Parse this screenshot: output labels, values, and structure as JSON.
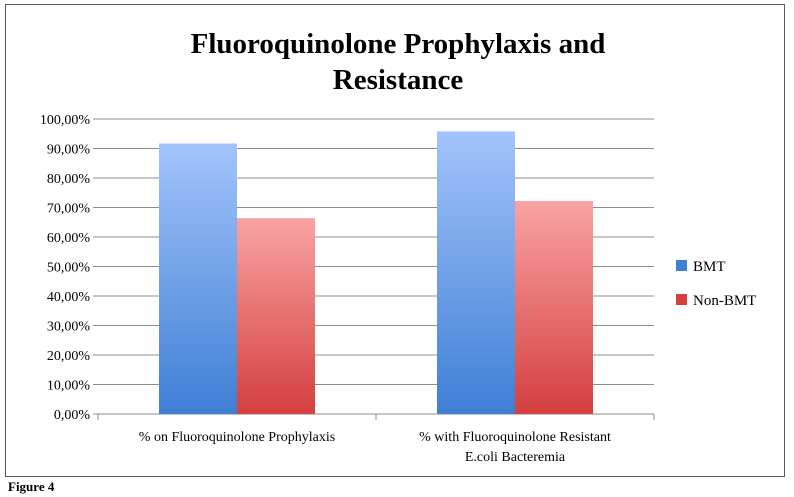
{
  "chart_data": {
    "type": "bar",
    "title_lines": [
      "Fluoroquinolone Prophylaxis and",
      "Resistance"
    ],
    "categories": [
      [
        "% on Fluoroquinolone Prophylaxis"
      ],
      [
        "% with Fluoroquinolone Resistant",
        "E.coli Bacteremia"
      ]
    ],
    "series": [
      {
        "name": "BMT",
        "values": [
          91.7,
          95.8
        ]
      },
      {
        "name": "Non-BMT",
        "values": [
          66.4,
          72.2
        ]
      }
    ],
    "ylim": [
      0,
      100
    ],
    "ytick_step": 10,
    "ytick_labels": [
      "0,00%",
      "10,00%",
      "20,00%",
      "30,00%",
      "40,00%",
      "50,00%",
      "60,00%",
      "70,00%",
      "80,00%",
      "90,00%",
      "100,00%"
    ],
    "grid": true,
    "legend_position": "right",
    "colors": {
      "BMT_top": "#a3c4fb",
      "BMT_bottom": "#3f7fd4",
      "NonBMT_top": "#f9a3a3",
      "NonBMT_bottom": "#d43f3f",
      "grid": "#8c8c8c"
    }
  },
  "figure_label": "Figure 4"
}
